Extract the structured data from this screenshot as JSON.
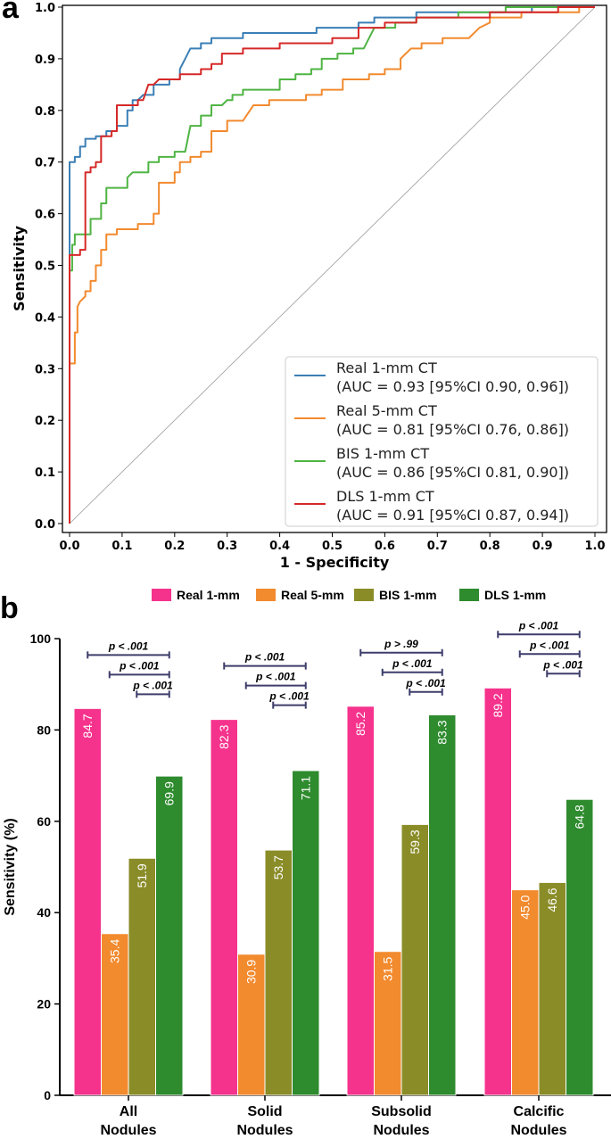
{
  "chart_data": [
    {
      "panel": "a",
      "type": "line",
      "title": "",
      "xlabel": "1 - Specificity",
      "ylabel": "Sensitivity",
      "xlim": [
        0.0,
        1.0
      ],
      "ylim": [
        0.0,
        1.0
      ],
      "xticks": [
        "0.0",
        "0.1",
        "0.2",
        "0.3",
        "0.4",
        "0.5",
        "0.6",
        "0.7",
        "0.8",
        "0.9",
        "1.0"
      ],
      "yticks": [
        "0.0",
        "0.1",
        "0.2",
        "0.3",
        "0.4",
        "0.5",
        "0.6",
        "0.7",
        "0.8",
        "0.9",
        "1.0"
      ],
      "legend_position": "bottom-right",
      "diagonal": true,
      "series": [
        {
          "name": "Real 1-mm CT",
          "auc": "(AUC = 0.93 [95%CI 0.90, 0.96])",
          "color": "#3b7fb5",
          "points": [
            [
              0,
              0
            ],
            [
              0,
              0.7
            ],
            [
              0.01,
              0.7
            ],
            [
              0.01,
              0.71
            ],
            [
              0.02,
              0.71
            ],
            [
              0.02,
              0.73
            ],
            [
              0.03,
              0.73
            ],
            [
              0.03,
              0.745
            ],
            [
              0.05,
              0.745
            ],
            [
              0.05,
              0.75
            ],
            [
              0.07,
              0.75
            ],
            [
              0.07,
              0.76
            ],
            [
              0.09,
              0.76
            ],
            [
              0.09,
              0.77
            ],
            [
              0.11,
              0.77
            ],
            [
              0.11,
              0.8
            ],
            [
              0.12,
              0.8
            ],
            [
              0.12,
              0.82
            ],
            [
              0.13,
              0.82
            ],
            [
              0.14,
              0.83
            ],
            [
              0.16,
              0.83
            ],
            [
              0.16,
              0.85
            ],
            [
              0.19,
              0.85
            ],
            [
              0.19,
              0.86
            ],
            [
              0.21,
              0.86
            ],
            [
              0.21,
              0.88
            ],
            [
              0.22,
              0.9
            ],
            [
              0.23,
              0.92
            ],
            [
              0.25,
              0.92
            ],
            [
              0.25,
              0.93
            ],
            [
              0.27,
              0.93
            ],
            [
              0.27,
              0.94
            ],
            [
              0.33,
              0.94
            ],
            [
              0.33,
              0.95
            ],
            [
              0.47,
              0.95
            ],
            [
              0.47,
              0.96
            ],
            [
              0.55,
              0.96
            ],
            [
              0.55,
              0.97
            ],
            [
              0.58,
              0.97
            ],
            [
              0.58,
              0.98
            ],
            [
              0.66,
              0.98
            ],
            [
              0.66,
              0.99
            ],
            [
              0.88,
              0.99
            ],
            [
              0.88,
              1.0
            ],
            [
              1.0,
              1.0
            ]
          ]
        },
        {
          "name": "Real 5-mm CT",
          "auc": "(AUC = 0.81 [95%CI 0.76, 0.86])",
          "color": "#f28a2e",
          "points": [
            [
              0,
              0
            ],
            [
              0,
              0.31
            ],
            [
              0.01,
              0.31
            ],
            [
              0.01,
              0.37
            ],
            [
              0.015,
              0.37
            ],
            [
              0.015,
              0.42
            ],
            [
              0.02,
              0.43
            ],
            [
              0.03,
              0.44
            ],
            [
              0.03,
              0.45
            ],
            [
              0.04,
              0.45
            ],
            [
              0.04,
              0.47
            ],
            [
              0.05,
              0.47
            ],
            [
              0.05,
              0.5
            ],
            [
              0.06,
              0.5
            ],
            [
              0.06,
              0.53
            ],
            [
              0.07,
              0.53
            ],
            [
              0.07,
              0.56
            ],
            [
              0.09,
              0.56
            ],
            [
              0.09,
              0.57
            ],
            [
              0.13,
              0.57
            ],
            [
              0.13,
              0.58
            ],
            [
              0.16,
              0.58
            ],
            [
              0.16,
              0.6
            ],
            [
              0.17,
              0.6
            ],
            [
              0.17,
              0.66
            ],
            [
              0.2,
              0.66
            ],
            [
              0.2,
              0.68
            ],
            [
              0.21,
              0.68
            ],
            [
              0.21,
              0.7
            ],
            [
              0.23,
              0.7
            ],
            [
              0.23,
              0.71
            ],
            [
              0.25,
              0.71
            ],
            [
              0.25,
              0.72
            ],
            [
              0.27,
              0.72
            ],
            [
              0.27,
              0.76
            ],
            [
              0.3,
              0.76
            ],
            [
              0.3,
              0.78
            ],
            [
              0.33,
              0.78
            ],
            [
              0.35,
              0.81
            ],
            [
              0.38,
              0.81
            ],
            [
              0.38,
              0.82
            ],
            [
              0.45,
              0.82
            ],
            [
              0.45,
              0.83
            ],
            [
              0.48,
              0.83
            ],
            [
              0.48,
              0.84
            ],
            [
              0.52,
              0.84
            ],
            [
              0.52,
              0.86
            ],
            [
              0.57,
              0.86
            ],
            [
              0.57,
              0.87
            ],
            [
              0.6,
              0.87
            ],
            [
              0.6,
              0.88
            ],
            [
              0.63,
              0.88
            ],
            [
              0.63,
              0.9
            ],
            [
              0.65,
              0.92
            ],
            [
              0.67,
              0.92
            ],
            [
              0.67,
              0.93
            ],
            [
              0.71,
              0.93
            ],
            [
              0.71,
              0.94
            ],
            [
              0.76,
              0.94
            ],
            [
              0.78,
              0.96
            ],
            [
              0.8,
              0.97
            ],
            [
              0.8,
              0.98
            ],
            [
              0.86,
              0.98
            ],
            [
              0.86,
              0.99
            ],
            [
              0.97,
              0.99
            ],
            [
              0.97,
              1.0
            ],
            [
              1.0,
              1.0
            ]
          ]
        },
        {
          "name": "BIS 1-mm CT",
          "auc": "(AUC = 0.86 [95%CI 0.81, 0.90])",
          "color": "#4fb443",
          "points": [
            [
              0,
              0
            ],
            [
              0,
              0.49
            ],
            [
              0.005,
              0.49
            ],
            [
              0.005,
              0.54
            ],
            [
              0.01,
              0.54
            ],
            [
              0.01,
              0.56
            ],
            [
              0.04,
              0.56
            ],
            [
              0.04,
              0.59
            ],
            [
              0.06,
              0.59
            ],
            [
              0.06,
              0.62
            ],
            [
              0.07,
              0.62
            ],
            [
              0.07,
              0.65
            ],
            [
              0.11,
              0.65
            ],
            [
              0.11,
              0.67
            ],
            [
              0.12,
              0.68
            ],
            [
              0.15,
              0.68
            ],
            [
              0.15,
              0.7
            ],
            [
              0.17,
              0.7
            ],
            [
              0.17,
              0.71
            ],
            [
              0.2,
              0.71
            ],
            [
              0.2,
              0.72
            ],
            [
              0.22,
              0.72
            ],
            [
              0.23,
              0.77
            ],
            [
              0.25,
              0.77
            ],
            [
              0.25,
              0.79
            ],
            [
              0.27,
              0.79
            ],
            [
              0.27,
              0.81
            ],
            [
              0.29,
              0.81
            ],
            [
              0.3,
              0.82
            ],
            [
              0.31,
              0.82
            ],
            [
              0.31,
              0.83
            ],
            [
              0.33,
              0.83
            ],
            [
              0.33,
              0.84
            ],
            [
              0.4,
              0.84
            ],
            [
              0.4,
              0.86
            ],
            [
              0.43,
              0.86
            ],
            [
              0.43,
              0.87
            ],
            [
              0.46,
              0.87
            ],
            [
              0.46,
              0.88
            ],
            [
              0.48,
              0.88
            ],
            [
              0.48,
              0.9
            ],
            [
              0.51,
              0.9
            ],
            [
              0.51,
              0.91
            ],
            [
              0.54,
              0.91
            ],
            [
              0.54,
              0.92
            ],
            [
              0.56,
              0.92
            ],
            [
              0.58,
              0.96
            ],
            [
              0.62,
              0.96
            ],
            [
              0.62,
              0.97
            ],
            [
              0.66,
              0.97
            ],
            [
              0.66,
              0.98
            ],
            [
              0.74,
              0.98
            ],
            [
              0.74,
              0.99
            ],
            [
              0.83,
              0.99
            ],
            [
              0.83,
              1.0
            ],
            [
              1.0,
              1.0
            ]
          ]
        },
        {
          "name": "DLS 1-mm CT",
          "auc": "(AUC = 0.91 [95%CI 0.87, 0.94])",
          "color": "#d62828",
          "points": [
            [
              0,
              0
            ],
            [
              0,
              0.52
            ],
            [
              0.02,
              0.52
            ],
            [
              0.02,
              0.53
            ],
            [
              0.03,
              0.53
            ],
            [
              0.03,
              0.68
            ],
            [
              0.04,
              0.68
            ],
            [
              0.04,
              0.69
            ],
            [
              0.05,
              0.69
            ],
            [
              0.05,
              0.7
            ],
            [
              0.06,
              0.7
            ],
            [
              0.06,
              0.75
            ],
            [
              0.08,
              0.75
            ],
            [
              0.08,
              0.76
            ],
            [
              0.09,
              0.76
            ],
            [
              0.09,
              0.81
            ],
            [
              0.13,
              0.81
            ],
            [
              0.13,
              0.82
            ],
            [
              0.14,
              0.82
            ],
            [
              0.15,
              0.85
            ],
            [
              0.16,
              0.85
            ],
            [
              0.17,
              0.86
            ],
            [
              0.21,
              0.86
            ],
            [
              0.21,
              0.87
            ],
            [
              0.25,
              0.87
            ],
            [
              0.25,
              0.88
            ],
            [
              0.27,
              0.88
            ],
            [
              0.27,
              0.89
            ],
            [
              0.29,
              0.89
            ],
            [
              0.29,
              0.91
            ],
            [
              0.33,
              0.91
            ],
            [
              0.33,
              0.92
            ],
            [
              0.4,
              0.92
            ],
            [
              0.4,
              0.93
            ],
            [
              0.5,
              0.93
            ],
            [
              0.5,
              0.94
            ],
            [
              0.55,
              0.94
            ],
            [
              0.55,
              0.96
            ],
            [
              0.6,
              0.96
            ],
            [
              0.6,
              0.97
            ],
            [
              0.66,
              0.97
            ],
            [
              0.66,
              0.98
            ],
            [
              0.8,
              0.98
            ],
            [
              0.8,
              0.99
            ],
            [
              0.93,
              0.99
            ],
            [
              0.93,
              1.0
            ],
            [
              1.0,
              1.0
            ]
          ]
        }
      ]
    },
    {
      "panel": "b",
      "type": "bar",
      "title": "",
      "xlabel": "",
      "ylabel": "Sensitivity (%)",
      "ylim": [
        0,
        100
      ],
      "yticks": [
        "0",
        "20",
        "40",
        "60",
        "80",
        "100"
      ],
      "legend_position": "top",
      "categories": [
        [
          "All",
          "Nodules"
        ],
        [
          "Solid",
          "Nodules"
        ],
        [
          "Subsolid",
          "Nodules"
        ],
        [
          "Calcific",
          "Nodules"
        ]
      ],
      "series": [
        {
          "name": "Real 1-mm",
          "color": "#f5338d",
          "values": [
            84.7,
            82.3,
            85.2,
            89.2
          ],
          "labels": [
            "84.7",
            "82.3",
            "85.2",
            "89.2"
          ]
        },
        {
          "name": "Real 5-mm",
          "color": "#f28a2e",
          "values": [
            35.4,
            30.9,
            31.5,
            45.0
          ],
          "labels": [
            "35.4",
            "30.9",
            "31.5",
            "45.0"
          ]
        },
        {
          "name": "BIS 1-mm",
          "color": "#8a8c28",
          "values": [
            51.9,
            53.7,
            59.3,
            46.6
          ],
          "labels": [
            "51.9",
            "53.7",
            "59.3",
            "46.6"
          ]
        },
        {
          "name": "DLS 1-mm",
          "color": "#2e8b2e",
          "values": [
            69.9,
            71.1,
            83.3,
            64.8
          ],
          "labels": [
            "69.9",
            "71.1",
            "83.3",
            "64.8"
          ]
        }
      ],
      "comparisons": [
        [
          {
            "from": 0,
            "to": 3,
            "label": "p < .001"
          },
          {
            "from": 1,
            "to": 3,
            "label": "p < .001"
          },
          {
            "from": 2,
            "to": 3,
            "label": "p < .001"
          }
        ],
        [
          {
            "from": 0,
            "to": 3,
            "label": "p < .001"
          },
          {
            "from": 1,
            "to": 3,
            "label": "p < .001"
          },
          {
            "from": 2,
            "to": 3,
            "label": "p < .001"
          }
        ],
        [
          {
            "from": 0,
            "to": 3,
            "label": "p > .99"
          },
          {
            "from": 1,
            "to": 3,
            "label": "p < .001"
          },
          {
            "from": 2,
            "to": 3,
            "label": "p < .001"
          }
        ],
        [
          {
            "from": 0,
            "to": 3,
            "label": "p < .001"
          },
          {
            "from": 1,
            "to": 3,
            "label": "p < .001"
          },
          {
            "from": 2,
            "to": 3,
            "label": "p < .001"
          }
        ]
      ],
      "comparison_bracket_color": "#3d3d6b"
    }
  ],
  "panels": {
    "a_letter": "a",
    "b_letter": "b"
  }
}
